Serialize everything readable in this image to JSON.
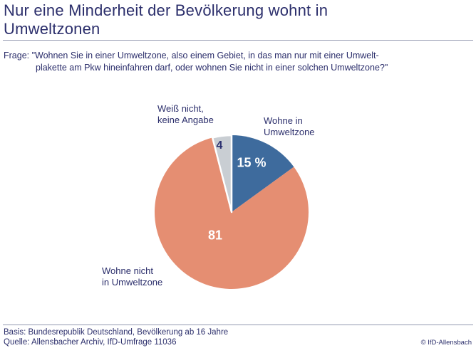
{
  "header": {
    "title_line1": "Nur eine Minderheit der Bevölkerung wohnt in",
    "title_line2": "Umweltzonen"
  },
  "question": {
    "line1": "Frage: \"Wohnen Sie in einer Umweltzone, also einem Gebiet, in das man nur mit einer Umwelt-",
    "line2": "plakette am Pkw hineinfahren darf, oder wohnen Sie nicht in einer solchen Umweltzone?\""
  },
  "chart_data": {
    "type": "pie",
    "unit": "%",
    "start_angle_deg": 0,
    "direction": "clockwise",
    "slices": [
      {
        "label": "Wohne in Umweltzone",
        "value": 15,
        "display": "15 %",
        "color": "#3e6b9d",
        "text_color": "#ffffff"
      },
      {
        "label": "Wohne nicht in Umweltzone",
        "value": 81,
        "display": "81",
        "color": "#e58e72",
        "text_color": "#ffffff"
      },
      {
        "label": "Weiß nicht, keine Angabe",
        "value": 4,
        "display": "4",
        "color": "#c9ced3",
        "text_color": "#2b3070",
        "stroke": "#ffffff"
      }
    ]
  },
  "labels": {
    "weiss_line1": "Weiß nicht,",
    "weiss_line2": "keine Angabe",
    "wohne_in_line1": "Wohne in",
    "wohne_in_line2": "Umweltzone",
    "wohne_nicht_line1": "Wohne nicht",
    "wohne_nicht_line2": "in Umweltzone"
  },
  "footer": {
    "basis": "Basis: Bundesrepublik Deutschland, Bevölkerung ab 16 Jahre",
    "quelle": "Quelle: Allensbacher Archiv, IfD-Umfrage 11036",
    "copyright": "© IfD-Allensbach"
  }
}
